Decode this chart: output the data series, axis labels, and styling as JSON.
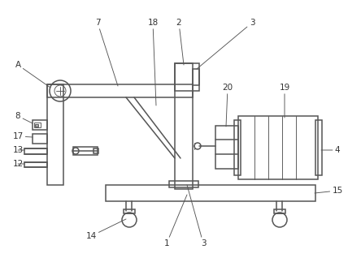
{
  "bg_color": "#ffffff",
  "line_color": "#555555",
  "line_width": 1.1,
  "thin_line": 0.65,
  "label_fontsize": 7.5,
  "label_color": "#333333",
  "figw": 4.44,
  "figh": 3.18,
  "dpi": 100
}
